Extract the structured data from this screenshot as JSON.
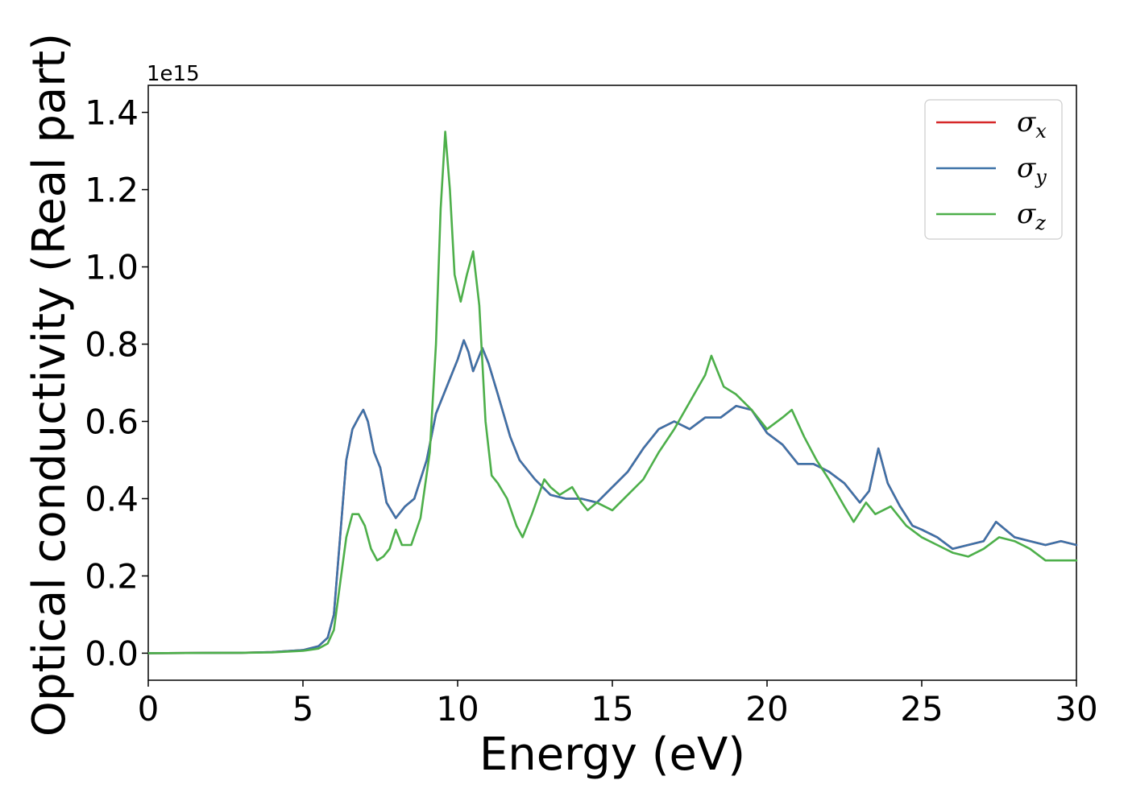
{
  "chart_data": {
    "type": "line",
    "title": "",
    "xlabel": "Energy (eV)",
    "ylabel": "Optical conductivity (Real part)",
    "y_offset_label": "1e15",
    "xlim": [
      0,
      30
    ],
    "ylim": [
      -0.07,
      1.47
    ],
    "x_ticks": [
      0,
      5,
      10,
      15,
      20,
      25,
      30
    ],
    "x_tick_labels": [
      "0",
      "5",
      "10",
      "15",
      "20",
      "25",
      "30"
    ],
    "y_ticks": [
      0.0,
      0.2,
      0.4,
      0.6,
      0.8,
      1.0,
      1.2,
      1.4
    ],
    "y_tick_labels": [
      "0.0",
      "0.2",
      "0.4",
      "0.6",
      "0.8",
      "1.0",
      "1.2",
      "1.4"
    ],
    "grid": false,
    "legend_position": "top-right",
    "series": [
      {
        "name": "σx",
        "symbol": "σ",
        "subscript": "x",
        "color": "#d62728",
        "x": [
          0,
          3,
          4,
          5,
          5.5,
          5.8,
          6.0,
          6.2,
          6.4,
          6.6,
          6.8,
          6.95,
          7.1,
          7.3,
          7.5,
          7.7,
          8.0,
          8.3,
          8.6,
          9.0,
          9.3,
          9.6,
          9.8,
          10.0,
          10.2,
          10.35,
          10.5,
          10.65,
          10.8,
          11.0,
          11.3,
          11.7,
          12.0,
          12.5,
          13.0,
          13.5,
          14.0,
          14.5,
          15.0,
          15.5,
          16.0,
          16.5,
          17.0,
          17.5,
          18.0,
          18.5,
          19.0,
          19.5,
          20.0,
          20.5,
          21.0,
          21.5,
          22.0,
          22.5,
          23.0,
          23.3,
          23.6,
          23.9,
          24.3,
          24.7,
          25.0,
          25.5,
          26.0,
          26.5,
          27.0,
          27.4,
          28.0,
          28.5,
          29.0,
          29.5,
          30.0
        ],
        "y": [
          0.0,
          0.001,
          0.003,
          0.008,
          0.018,
          0.04,
          0.1,
          0.3,
          0.5,
          0.58,
          0.61,
          0.63,
          0.6,
          0.52,
          0.48,
          0.39,
          0.35,
          0.38,
          0.4,
          0.5,
          0.62,
          0.68,
          0.72,
          0.76,
          0.81,
          0.78,
          0.73,
          0.76,
          0.79,
          0.75,
          0.67,
          0.56,
          0.5,
          0.45,
          0.41,
          0.4,
          0.4,
          0.39,
          0.43,
          0.47,
          0.53,
          0.58,
          0.6,
          0.58,
          0.61,
          0.61,
          0.64,
          0.63,
          0.57,
          0.54,
          0.49,
          0.49,
          0.47,
          0.44,
          0.39,
          0.42,
          0.53,
          0.44,
          0.38,
          0.33,
          0.32,
          0.3,
          0.27,
          0.28,
          0.29,
          0.34,
          0.3,
          0.29,
          0.28,
          0.29,
          0.28
        ]
      },
      {
        "name": "σy",
        "symbol": "σ",
        "subscript": "y",
        "color": "#3d72a8",
        "x": [
          0,
          3,
          4,
          5,
          5.5,
          5.8,
          6.0,
          6.2,
          6.4,
          6.6,
          6.8,
          6.95,
          7.1,
          7.3,
          7.5,
          7.7,
          8.0,
          8.3,
          8.6,
          9.0,
          9.3,
          9.6,
          9.8,
          10.0,
          10.2,
          10.35,
          10.5,
          10.65,
          10.8,
          11.0,
          11.3,
          11.7,
          12.0,
          12.5,
          13.0,
          13.5,
          14.0,
          14.5,
          15.0,
          15.5,
          16.0,
          16.5,
          17.0,
          17.5,
          18.0,
          18.5,
          19.0,
          19.5,
          20.0,
          20.5,
          21.0,
          21.5,
          22.0,
          22.5,
          23.0,
          23.3,
          23.6,
          23.9,
          24.3,
          24.7,
          25.0,
          25.5,
          26.0,
          26.5,
          27.0,
          27.4,
          28.0,
          28.5,
          29.0,
          29.5,
          30.0
        ],
        "y": [
          0.0,
          0.001,
          0.003,
          0.008,
          0.018,
          0.04,
          0.1,
          0.3,
          0.5,
          0.58,
          0.61,
          0.63,
          0.6,
          0.52,
          0.48,
          0.39,
          0.35,
          0.38,
          0.4,
          0.5,
          0.62,
          0.68,
          0.72,
          0.76,
          0.81,
          0.78,
          0.73,
          0.76,
          0.79,
          0.75,
          0.67,
          0.56,
          0.5,
          0.45,
          0.41,
          0.4,
          0.4,
          0.39,
          0.43,
          0.47,
          0.53,
          0.58,
          0.6,
          0.58,
          0.61,
          0.61,
          0.64,
          0.63,
          0.57,
          0.54,
          0.49,
          0.49,
          0.47,
          0.44,
          0.39,
          0.42,
          0.53,
          0.44,
          0.38,
          0.33,
          0.32,
          0.3,
          0.27,
          0.28,
          0.29,
          0.34,
          0.3,
          0.29,
          0.28,
          0.29,
          0.28
        ]
      },
      {
        "name": "σz",
        "symbol": "σ",
        "subscript": "z",
        "color": "#4daf4a",
        "x": [
          0,
          3,
          4,
          5,
          5.5,
          5.8,
          6.0,
          6.2,
          6.4,
          6.6,
          6.8,
          7.0,
          7.2,
          7.4,
          7.6,
          7.8,
          8.0,
          8.2,
          8.5,
          8.8,
          9.1,
          9.3,
          9.45,
          9.6,
          9.75,
          9.9,
          10.1,
          10.3,
          10.5,
          10.7,
          10.9,
          11.1,
          11.3,
          11.6,
          11.9,
          12.1,
          12.4,
          12.8,
          13.0,
          13.3,
          13.7,
          14.0,
          14.2,
          14.5,
          15.0,
          15.5,
          16.0,
          16.5,
          17.0,
          17.5,
          18.0,
          18.2,
          18.6,
          19.0,
          19.5,
          20.0,
          20.5,
          20.8,
          21.2,
          21.6,
          22.0,
          22.5,
          22.8,
          23.2,
          23.5,
          24.0,
          24.5,
          25.0,
          25.5,
          26.0,
          26.5,
          27.0,
          27.5,
          28.0,
          28.5,
          29.0,
          29.5,
          30.0
        ],
        "y": [
          0.0,
          0.001,
          0.002,
          0.006,
          0.012,
          0.025,
          0.06,
          0.18,
          0.3,
          0.36,
          0.36,
          0.33,
          0.27,
          0.24,
          0.25,
          0.27,
          0.32,
          0.28,
          0.28,
          0.35,
          0.52,
          0.8,
          1.15,
          1.35,
          1.2,
          0.98,
          0.91,
          0.98,
          1.04,
          0.9,
          0.6,
          0.46,
          0.44,
          0.4,
          0.33,
          0.3,
          0.36,
          0.45,
          0.43,
          0.41,
          0.43,
          0.39,
          0.37,
          0.39,
          0.37,
          0.41,
          0.45,
          0.52,
          0.58,
          0.65,
          0.72,
          0.77,
          0.69,
          0.67,
          0.63,
          0.58,
          0.61,
          0.63,
          0.56,
          0.5,
          0.45,
          0.38,
          0.34,
          0.39,
          0.36,
          0.38,
          0.33,
          0.3,
          0.28,
          0.26,
          0.25,
          0.27,
          0.3,
          0.29,
          0.27,
          0.24,
          0.24,
          0.24
        ]
      }
    ]
  }
}
